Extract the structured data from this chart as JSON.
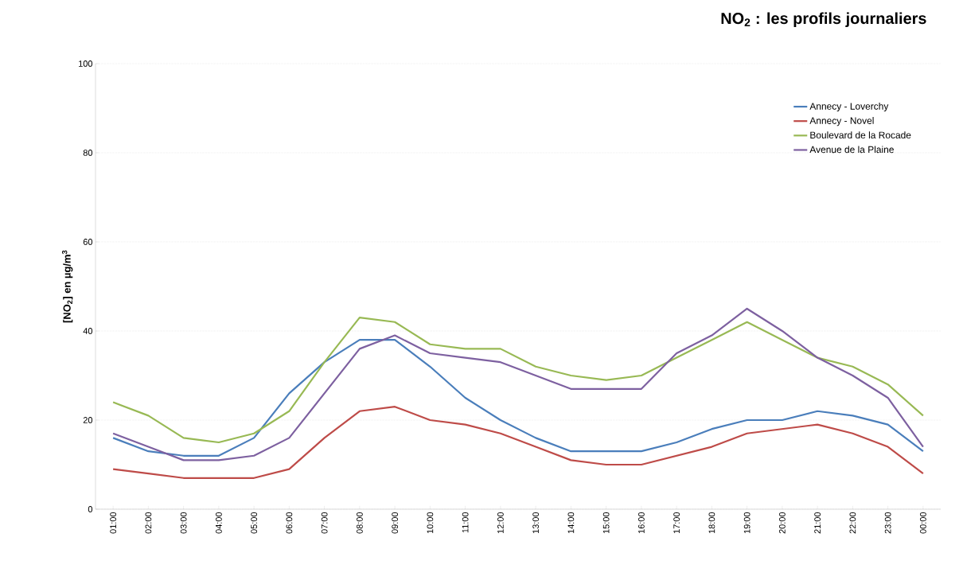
{
  "chart_data": {
    "type": "line",
    "title": "NO$_{2}$ : les profils journaliers",
    "ylabel": "[NO$_{2}$] en µg/m$^{3}$",
    "categories": [
      "01:00",
      "02:00",
      "03:00",
      "04:00",
      "05:00",
      "06:00",
      "07:00",
      "08:00",
      "09:00",
      "10:00",
      "11:00",
      "12:00",
      "13:00",
      "14:00",
      "15:00",
      "16:00",
      "17:00",
      "18:00",
      "19:00",
      "20:00",
      "21:00",
      "22:00",
      "23:00",
      "00:00"
    ],
    "series": [
      {
        "name": "Annecy - Loverchy",
        "color": "#4a7ebb",
        "values": [
          16,
          13,
          12,
          12,
          16,
          26,
          33,
          38,
          38,
          32,
          25,
          20,
          16,
          13,
          13,
          13,
          15,
          18,
          20,
          20,
          22,
          21,
          19,
          13
        ]
      },
      {
        "name": "Annecy - Novel",
        "color": "#be4b48",
        "values": [
          9,
          8,
          7,
          7,
          7,
          9,
          16,
          22,
          23,
          20,
          19,
          17,
          14,
          11,
          10,
          10,
          12,
          14,
          17,
          18,
          19,
          17,
          14,
          8
        ]
      },
      {
        "name": "Boulevard de la Rocade",
        "color": "#98b954",
        "values": [
          24,
          21,
          16,
          15,
          17,
          22,
          33,
          43,
          42,
          37,
          36,
          36,
          32,
          30,
          29,
          30,
          34,
          38,
          42,
          38,
          34,
          32,
          28,
          21
        ]
      },
      {
        "name": "Avenue de la Plaine",
        "color": "#7d60a0",
        "values": [
          17,
          14,
          11,
          11,
          12,
          16,
          26,
          36,
          39,
          35,
          34,
          33,
          30,
          27,
          27,
          27,
          35,
          39,
          45,
          40,
          34,
          30,
          25,
          14
        ]
      }
    ],
    "ylim": [
      0,
      100
    ],
    "yticks": [
      0,
      20,
      40,
      60,
      80,
      100
    ],
    "grid": "y",
    "legend": "top right",
    "marker": "none",
    "line_style": "solid"
  }
}
